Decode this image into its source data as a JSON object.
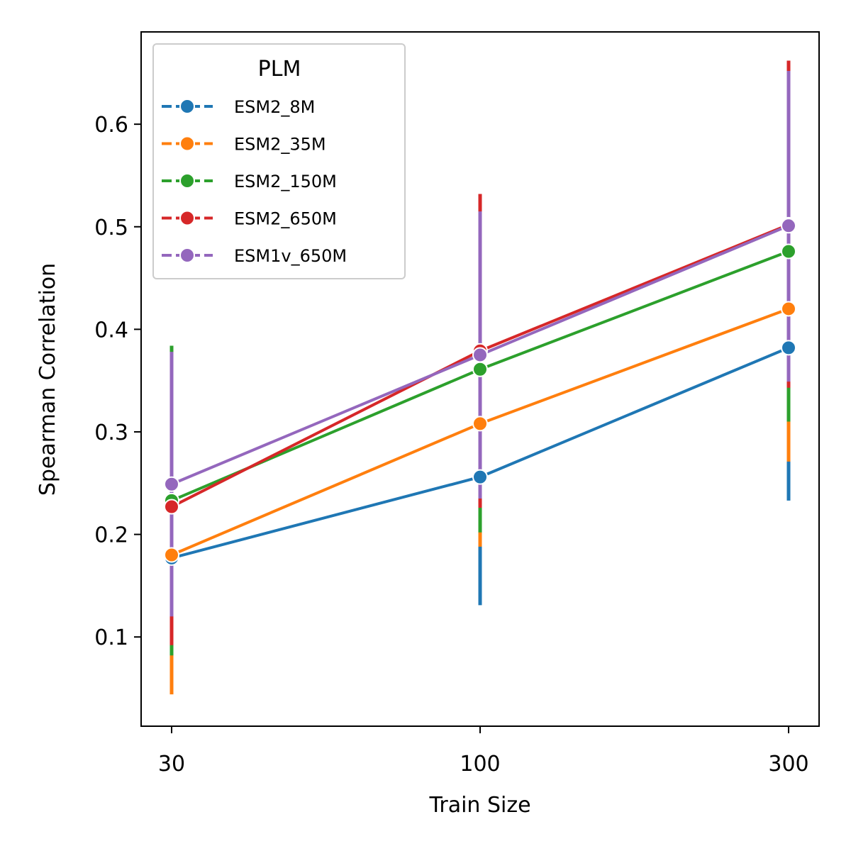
{
  "chart_data": {
    "type": "line",
    "title": "",
    "xlabel": "Train Size",
    "ylabel": "Spearman Correlation",
    "x": [
      30,
      100,
      300
    ],
    "x_tick_labels": [
      "30",
      "100",
      "300"
    ],
    "x_scale": "categorical",
    "ylim": [
      0.013,
      0.69
    ],
    "y_ticks": [
      0.1,
      0.2,
      0.3,
      0.4,
      0.5,
      0.6
    ],
    "y_tick_labels": [
      "0.1",
      "0.2",
      "0.3",
      "0.4",
      "0.5",
      "0.6"
    ],
    "grid": false,
    "legend": {
      "title": "PLM",
      "placement": "top-left"
    },
    "series": [
      {
        "name": "ESM2_8M",
        "color": "#1f77b4",
        "values": [
          0.177,
          0.256,
          0.382
        ],
        "err_low": [
          0.13,
          0.131,
          0.233
        ],
        "err_high": [
          0.225,
          0.382,
          0.531
        ]
      },
      {
        "name": "ESM2_35M",
        "color": "#ff7f0e",
        "values": [
          0.18,
          0.308,
          0.42
        ],
        "err_low": [
          0.044,
          0.188,
          0.271
        ],
        "err_high": [
          0.316,
          0.428,
          0.569
        ]
      },
      {
        "name": "ESM2_150M",
        "color": "#2ca02c",
        "values": [
          0.233,
          0.361,
          0.476
        ],
        "err_low": [
          0.082,
          0.202,
          0.31
        ],
        "err_high": [
          0.384,
          0.52,
          0.642
        ]
      },
      {
        "name": "ESM2_650M",
        "color": "#d62728",
        "values": [
          0.227,
          0.379,
          0.502
        ],
        "err_low": [
          0.092,
          0.226,
          0.343
        ],
        "err_high": [
          0.362,
          0.532,
          0.662
        ]
      },
      {
        "name": "ESM1v_650M",
        "color": "#9467bd",
        "values": [
          0.249,
          0.375,
          0.501
        ],
        "err_low": [
          0.12,
          0.235,
          0.349
        ],
        "err_high": [
          0.378,
          0.515,
          0.652
        ]
      }
    ]
  }
}
